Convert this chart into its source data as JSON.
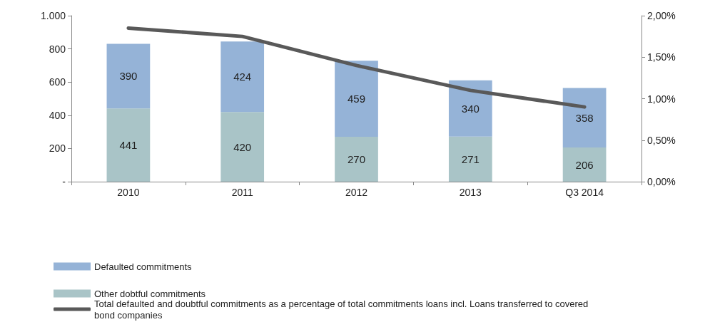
{
  "chart_data": {
    "type": "bar",
    "stacked": true,
    "categories": [
      "2010",
      "2011",
      "2012",
      "2013",
      "Q3 2014"
    ],
    "series": [
      {
        "name": "Other dobtful commitments",
        "color": "#a9c4c7",
        "values": [
          441,
          420,
          270,
          271,
          206
        ],
        "value_labels": [
          "441",
          "420",
          "270",
          "271",
          "206"
        ]
      },
      {
        "name": "Defaulted commitments",
        "color": "#95b3d7",
        "values": [
          390,
          424,
          459,
          340,
          358
        ],
        "value_labels": [
          "390",
          "424",
          "459",
          "340",
          "358"
        ]
      },
      {
        "name": "Total defaulted and doubtful commitments as a percentage of total commitments loans incl. Loans transferred to covered bond companies",
        "type": "line",
        "axis": "y2",
        "color": "#595959",
        "values": [
          1.85,
          1.75,
          1.4,
          1.1,
          0.9
        ]
      }
    ],
    "ylim": [
      0,
      1000
    ],
    "yticks": [
      {
        "value": 0,
        "label": "-"
      },
      200,
      400,
      600,
      800,
      {
        "value": 1000,
        "label": "1.000"
      }
    ],
    "y2lim": [
      0,
      2
    ],
    "y2ticks": [
      {
        "value": 0,
        "label": "0,00%"
      },
      {
        "value": 0.5,
        "label": "0,50%"
      },
      {
        "value": 1,
        "label": "1,00%"
      },
      {
        "value": 1.5,
        "label": "1,50%"
      },
      {
        "value": 2,
        "label": "2,00%"
      }
    ],
    "grid": false,
    "legend": "bottom",
    "marker": "none",
    "line_style": "solid"
  }
}
